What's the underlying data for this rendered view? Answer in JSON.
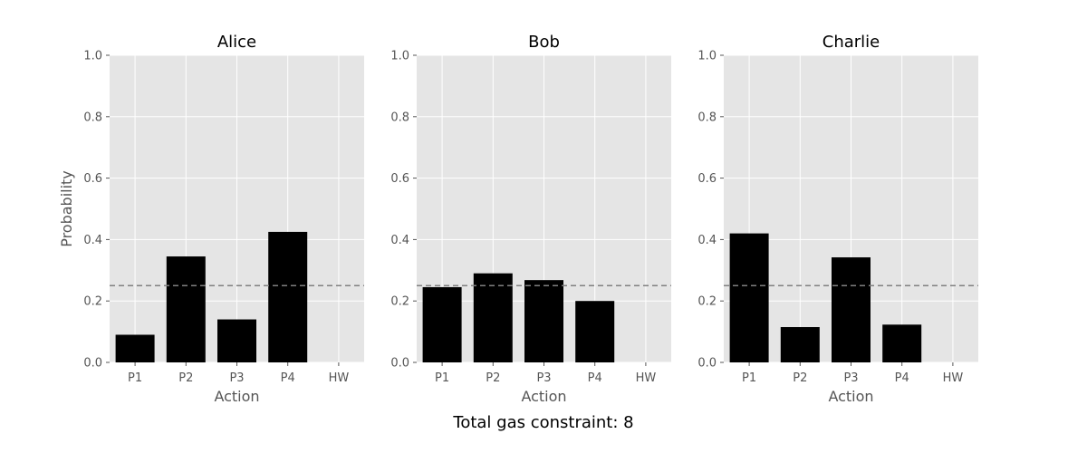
{
  "figure": {
    "suptitle": "Total gas constraint: 8"
  },
  "colors": {
    "bar": "#000000",
    "panel_bg": "#e5e5e5",
    "grid": "#ffffff",
    "reference_line": "#808080",
    "tick_text": "#555555",
    "label_text": "#555555"
  },
  "chart_data": [
    {
      "type": "bar",
      "title": "Alice",
      "xlabel": "Action",
      "ylabel": "Probability",
      "categories": [
        "P1",
        "P2",
        "P3",
        "P4",
        "HW"
      ],
      "values": [
        0.09,
        0.345,
        0.14,
        0.425,
        0.0
      ],
      "ylim": [
        0,
        1.0
      ],
      "yticks": [
        "0.0",
        "0.2",
        "0.4",
        "0.6",
        "0.8",
        "1.0"
      ],
      "reference_line": 0.25,
      "grid": true
    },
    {
      "type": "bar",
      "title": "Bob",
      "xlabel": "Action",
      "ylabel": "",
      "categories": [
        "P1",
        "P2",
        "P3",
        "P4",
        "HW"
      ],
      "values": [
        0.245,
        0.29,
        0.268,
        0.2,
        0.0
      ],
      "ylim": [
        0,
        1.0
      ],
      "yticks": [
        "0.0",
        "0.2",
        "0.4",
        "0.6",
        "0.8",
        "1.0"
      ],
      "reference_line": 0.25,
      "grid": true
    },
    {
      "type": "bar",
      "title": "Charlie",
      "xlabel": "Action",
      "ylabel": "",
      "categories": [
        "P1",
        "P2",
        "P3",
        "P4",
        "HW"
      ],
      "values": [
        0.42,
        0.115,
        0.342,
        0.123,
        0.0
      ],
      "ylim": [
        0,
        1.0
      ],
      "yticks": [
        "0.0",
        "0.2",
        "0.4",
        "0.6",
        "0.8",
        "1.0"
      ],
      "reference_line": 0.25,
      "grid": true
    }
  ]
}
